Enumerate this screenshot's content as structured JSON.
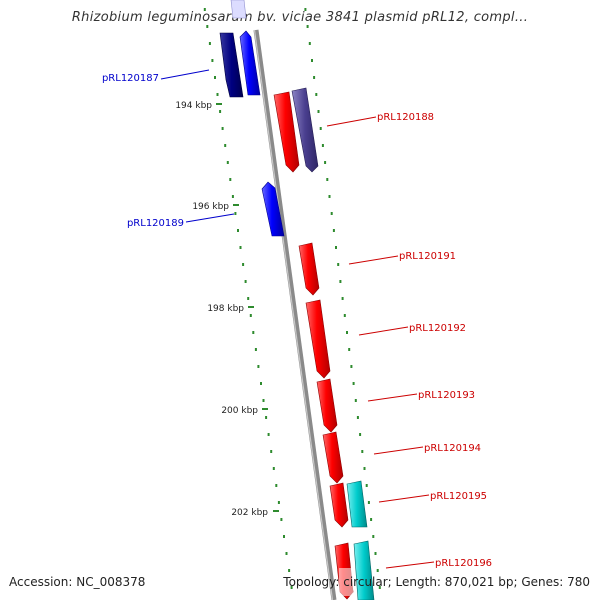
{
  "title": "Rhizobium leguminosarum bv. viciae 3841 plasmid pRL12, compl...",
  "footer": {
    "accession": "Accession: NC_008378",
    "summary": "Topology: circular; Length: 870,021 bp; Genes: 780"
  },
  "colors": {
    "backbone": "#8a8a8a",
    "tick": "#2e8b2e",
    "label_forward": "#cc0000",
    "label_reverse": "#0000cc",
    "gene_red": "#ff0000",
    "gene_blue": "#0000ff",
    "gene_navy": "#000080",
    "gene_slate": "#4a3f8f",
    "gene_cyan": "#00cccc"
  },
  "ruler": [
    {
      "label": "194 kbp"
    },
    {
      "label": "196 kbp"
    },
    {
      "label": "198 kbp"
    },
    {
      "label": "200 kbp"
    },
    {
      "label": "202 kbp"
    }
  ],
  "gene_labels": [
    {
      "id": "pRL120187",
      "strand": "reverse"
    },
    {
      "id": "pRL120188",
      "strand": "forward"
    },
    {
      "id": "pRL120189",
      "strand": "reverse"
    },
    {
      "id": "pRL120191",
      "strand": "forward"
    },
    {
      "id": "pRL120192",
      "strand": "forward"
    },
    {
      "id": "pRL120193",
      "strand": "forward"
    },
    {
      "id": "pRL120194",
      "strand": "forward"
    },
    {
      "id": "pRL120195",
      "strand": "forward"
    },
    {
      "id": "pRL120196",
      "strand": "forward"
    }
  ]
}
